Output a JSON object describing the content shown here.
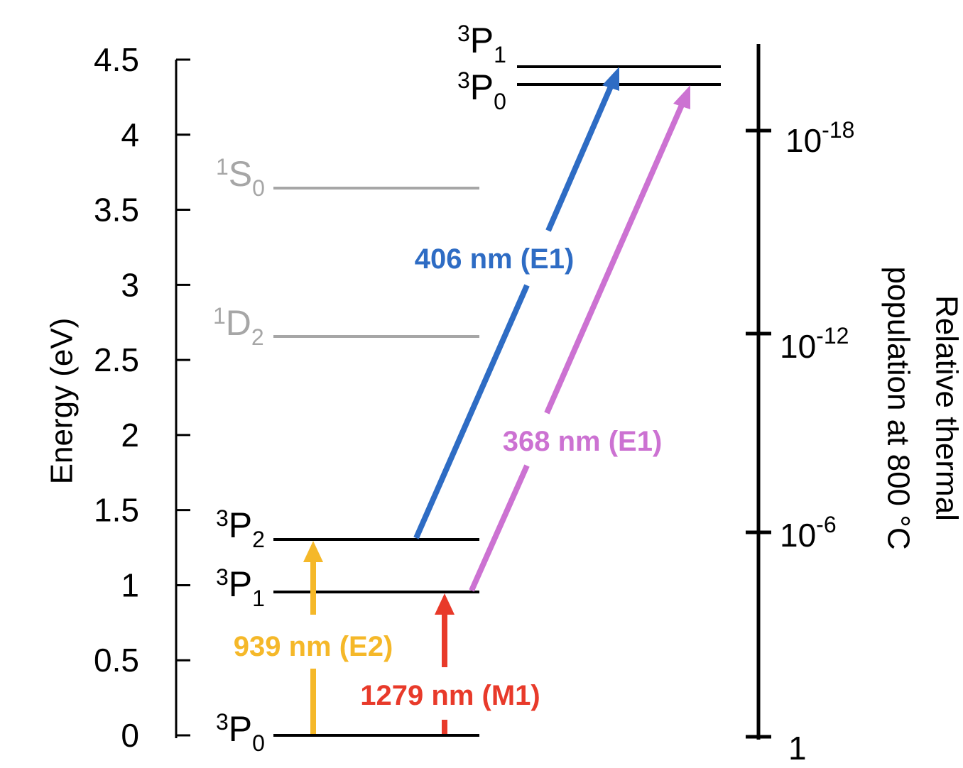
{
  "left_axis": {
    "title": "Energy (eV)",
    "ticks": [
      "0",
      "0.5",
      "1",
      "1.5",
      "2",
      "2.5",
      "3",
      "3.5",
      "4",
      "4.5"
    ],
    "range": [
      0,
      4.5
    ]
  },
  "right_axis": {
    "title_line1": "Relative thermal",
    "title_line2": "population at 800 °C",
    "ticks": [
      {
        "base": "1",
        "exp": ""
      },
      {
        "base": "10",
        "exp": "-6"
      },
      {
        "base": "10",
        "exp": "-12"
      },
      {
        "base": "10",
        "exp": "-18"
      }
    ]
  },
  "left_levels": [
    {
      "name": "3P0",
      "sup": "3",
      "letter": "P",
      "sub": "0",
      "energy_ev": 0.0,
      "color": "#000000"
    },
    {
      "name": "3P1",
      "sup": "3",
      "letter": "P",
      "sub": "1",
      "energy_ev": 0.97,
      "color": "#000000"
    },
    {
      "name": "3P2",
      "sup": "3",
      "letter": "P",
      "sub": "2",
      "energy_ev": 1.32,
      "color": "#000000"
    },
    {
      "name": "1D2",
      "sup": "1",
      "letter": "D",
      "sub": "2",
      "energy_ev": 2.66,
      "color": "#a6a6a6"
    },
    {
      "name": "1S0",
      "sup": "1",
      "letter": "S",
      "sub": "0",
      "energy_ev": 3.65,
      "color": "#a6a6a6"
    }
  ],
  "right_levels": [
    {
      "name": "3P0",
      "sup": "3",
      "letter": "P",
      "sub": "0",
      "energy_ev": 4.34,
      "color": "#000000"
    },
    {
      "name": "3P1",
      "sup": "3",
      "letter": "P",
      "sub": "1",
      "energy_ev": 4.46,
      "color": "#000000"
    }
  ],
  "transitions": [
    {
      "label": "939 nm (E2)",
      "color": "#f5b829"
    },
    {
      "label": "1279 nm (M1)",
      "color": "#e83a2a"
    },
    {
      "label": "406 nm (E1)",
      "color": "#2e6cc4"
    },
    {
      "label": "368 nm (E1)",
      "color": "#cc72d2"
    }
  ]
}
